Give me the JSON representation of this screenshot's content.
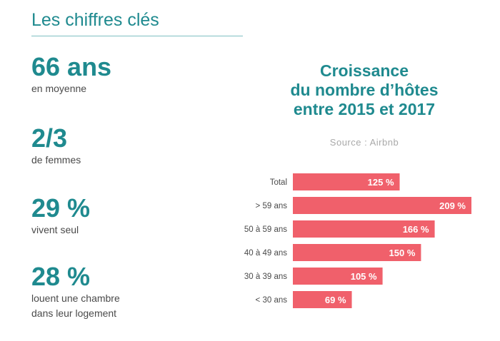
{
  "section_title": "Les chiffres clés",
  "stats": [
    {
      "value": "66 ans",
      "label": "en moyenne"
    },
    {
      "value": "2/3",
      "label": "de femmes"
    },
    {
      "value": "29 %",
      "label": "vivent seul"
    },
    {
      "value": "28 %",
      "label": "louent une chambre dans leur logement",
      "label_lines": [
        "louent une chambre",
        "dans leur logement"
      ]
    }
  ],
  "chart_data": {
    "type": "bar",
    "orientation": "horizontal",
    "title": "Croissance du nombre d’hôtes entre 2015 et 2017",
    "title_lines": [
      "Croissance",
      "du nombre d’hôtes",
      "entre 2015 et 2017"
    ],
    "source": "Source : Airbnb",
    "categories": [
      "Total",
      "> 59 ans",
      "50 à 59 ans",
      "40 à 49 ans",
      "30 à 39 ans",
      "< 30 ans"
    ],
    "values": [
      125,
      209,
      166,
      150,
      105,
      69
    ],
    "value_labels": [
      "125 %",
      "209 %",
      "166 %",
      "150 %",
      "105 %",
      "69 %"
    ],
    "unit": "%",
    "xlim": [
      0,
      209
    ],
    "grid": false,
    "bar_color": "#f0606b"
  }
}
